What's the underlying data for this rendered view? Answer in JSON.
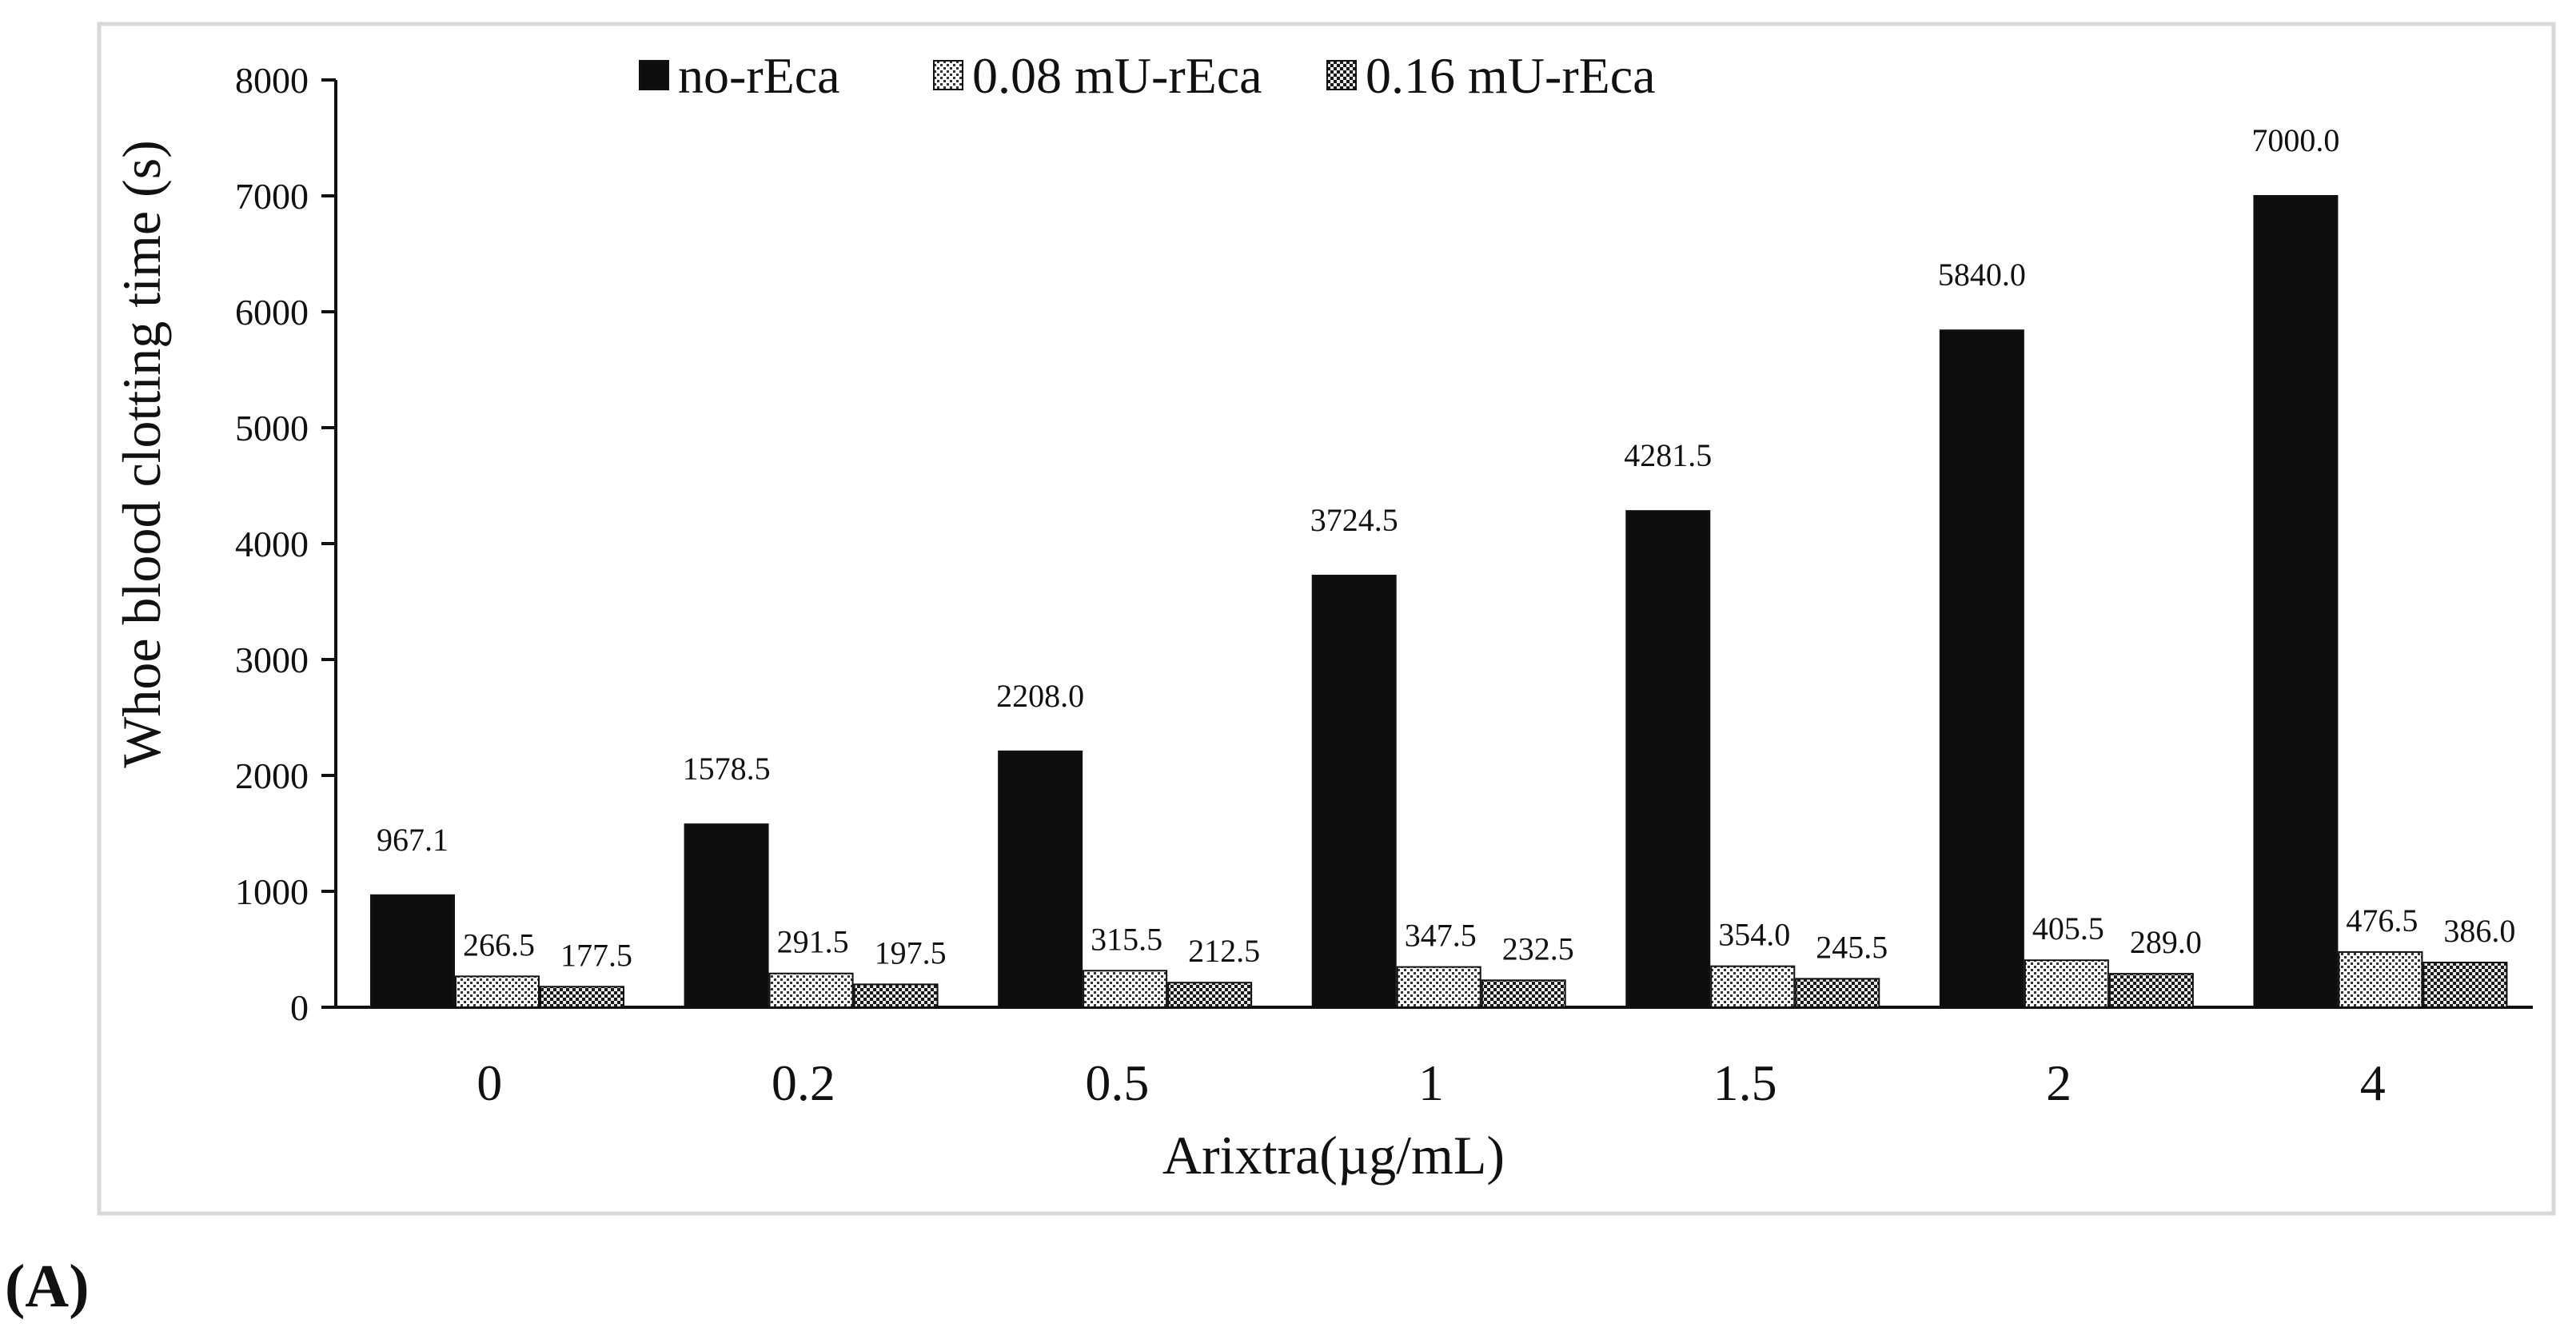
{
  "panel_label": "(A)",
  "colors": {
    "no_reca": "#0d0d0d",
    "frame": "#d9d9d9",
    "axis": "#111111"
  },
  "chart_data": {
    "type": "bar",
    "title": "",
    "xlabel": "Arixtra(µg/mL)",
    "ylabel": "Whoe blood clotting time (s)",
    "ylim": [
      0,
      8000
    ],
    "yticks": [
      "0",
      "1000",
      "2000",
      "3000",
      "4000",
      "5000",
      "6000",
      "7000",
      "8000"
    ],
    "grid": false,
    "legend_position": "top",
    "categories": [
      "0",
      "0.2",
      "0.5",
      "1",
      "1.5",
      "2",
      "4"
    ],
    "series": [
      {
        "name": "no-rEca",
        "pattern": "solid",
        "values": [
          967.1,
          1578.5,
          2208.0,
          3724.5,
          4281.5,
          5840.0,
          7000.0
        ],
        "labels": [
          "967.1",
          "1578.5",
          "2208.0",
          "3724.5",
          "4281.5",
          "5840.0",
          "7000.0"
        ]
      },
      {
        "name": "0.08 mU-rEca",
        "pattern": "dots",
        "values": [
          266.5,
          291.5,
          315.5,
          347.5,
          354.0,
          405.5,
          476.5
        ],
        "labels": [
          "266.5",
          "291.5",
          "315.5",
          "347.5",
          "354.0",
          "405.5",
          "476.5"
        ]
      },
      {
        "name": "0.16 mU-rEca",
        "pattern": "checker",
        "values": [
          177.5,
          197.5,
          212.5,
          232.5,
          245.5,
          289.0,
          386.0
        ],
        "labels": [
          "177.5",
          "197.5",
          "212.5",
          "232.5",
          "245.5",
          "289.0",
          "386.0"
        ]
      }
    ]
  }
}
